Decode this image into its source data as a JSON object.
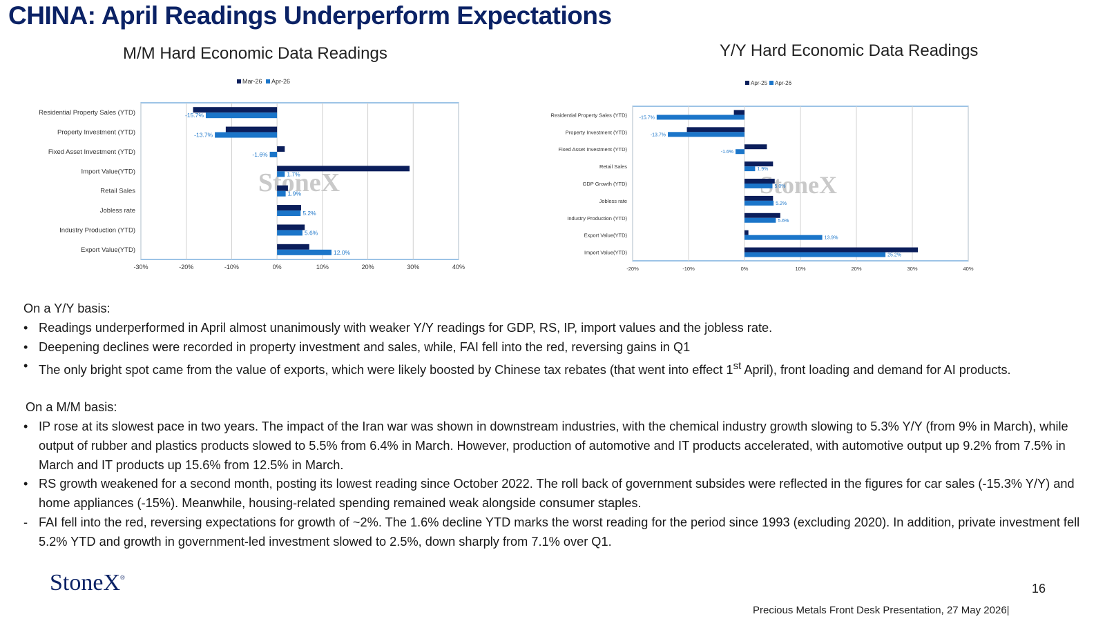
{
  "title": "CHINA: April Readings Underperform Expectations",
  "colors": {
    "dark": "#0b1e5b",
    "light": "#1b75c9",
    "title": "#0b2265",
    "frame": "#5b9bd5"
  },
  "chart_data": [
    {
      "type": "bar",
      "orientation": "horizontal",
      "title": "M/M Hard Economic Data Readings",
      "categories": [
        "Residential Property Sales (YTD)",
        "Property Investment (YTD)",
        "Fixed Asset Investment (YTD)",
        "Import Value(YTD)",
        "Retail Sales",
        "Jobless rate",
        "Industry Production (YTD)",
        "Export Value(YTD)"
      ],
      "series": [
        {
          "name": "Mar-26",
          "values": [
            -18.5,
            -11.3,
            1.7,
            29.2,
            2.4,
            5.3,
            6.1,
            7.1
          ]
        },
        {
          "name": "Apr-26",
          "values": [
            -15.7,
            -13.7,
            -1.6,
            1.7,
            1.9,
            5.2,
            5.6,
            12.0
          ]
        }
      ],
      "data_labels": [
        "-15.7%",
        "-13.7%",
        "-1.6%",
        "1.7%",
        "1.9%",
        "5.2%",
        "5.6%",
        "12.0%"
      ],
      "xlim": [
        -30,
        40
      ],
      "xticks": [
        "-30%",
        "-20%",
        "-10%",
        "0%",
        "10%",
        "20%",
        "30%",
        "40%"
      ],
      "legend": "top",
      "grid": true,
      "watermark": "StoneX"
    },
    {
      "type": "bar",
      "orientation": "horizontal",
      "title": "Y/Y Hard Economic Data Readings",
      "categories": [
        "Residential Property Sales (YTD)",
        "Property Investment (YTD)",
        "Fixed Asset Investment (YTD)",
        "Retail Sales",
        "GDP Growth (YTD)",
        "Jobless rate",
        "Industry Production (YTD)",
        "Export Value(YTD)",
        "Import Value(YTD)"
      ],
      "series": [
        {
          "name": "Apr-25",
          "values": [
            -1.9,
            -10.3,
            4.0,
            5.1,
            5.4,
            5.1,
            6.4,
            0.7,
            31.0
          ]
        },
        {
          "name": "Apr-26",
          "values": [
            -15.7,
            -13.7,
            -1.6,
            1.9,
            5.0,
            5.2,
            5.6,
            13.9,
            25.2
          ]
        }
      ],
      "data_labels": [
        "-15.7%",
        "-13.7%",
        "-1.6%",
        "1.9%",
        "5.0%",
        "5.2%",
        "5.6%",
        "13.9%",
        "25.2%"
      ],
      "xlim": [
        -20,
        40
      ],
      "xticks": [
        "-20%",
        "-10%",
        "0%",
        "10%",
        "20%",
        "30%",
        "40%"
      ],
      "legend": "top",
      "grid": true,
      "watermark": "StoneX"
    }
  ],
  "text": {
    "yy_heading": "On a Y/Y basis:",
    "yy_b1": "Readings underperformed in April almost unanimously with weaker Y/Y readings for GDP, RS, IP, import values and the jobless rate.",
    "yy_b2": "Deepening declines were recorded in property investment and sales, while, FAI fell into the red, reversing gains in Q1",
    "yy_b3_pre": "The only bright spot came from the value of exports, which were likely boosted by Chinese tax rebates (that went into effect 1",
    "yy_b3_sup": "st",
    "yy_b3_post": " April), front loading and demand for AI products.",
    "mm_heading": "On a M/M basis:",
    "mm_b1": "IP rose at its slowest pace in two years. The impact of the Iran war was shown in downstream industries, with the chemical industry growth slowing to 5.3% Y/Y (from 9% in March), while output of rubber and plastics products slowed to 5.5% from 6.4% in March. However, production of automotive and IT products accelerated, with automotive output up 9.2% from 7.5% in March and IT products up 15.6% from 12.5% in March.",
    "mm_b2": "RS growth weakened for a second month, posting its lowest reading since October 2022. The roll back of government subsides were reflected in the figures for car sales (-15.3% Y/Y) and home appliances (-15%). Meanwhile, housing-related spending remained weak alongside consumer staples.",
    "mm_b3": "FAI fell into the red, reversing expectations for growth of ~2%. The 1.6% decline YTD marks the worst reading for the period since 1993 (excluding 2020).  In addition, private investment fell 5.2% YTD and growth in government-led investment slowed to 2.5%, down sharply from 7.1% over Q1.",
    "bullet": "•",
    "dash": "-"
  },
  "logo": {
    "text": "StoneX",
    "mark": "®"
  },
  "page_number": "16",
  "footer": "Precious Metals Front Desk Presentation, 27 May 2026|"
}
